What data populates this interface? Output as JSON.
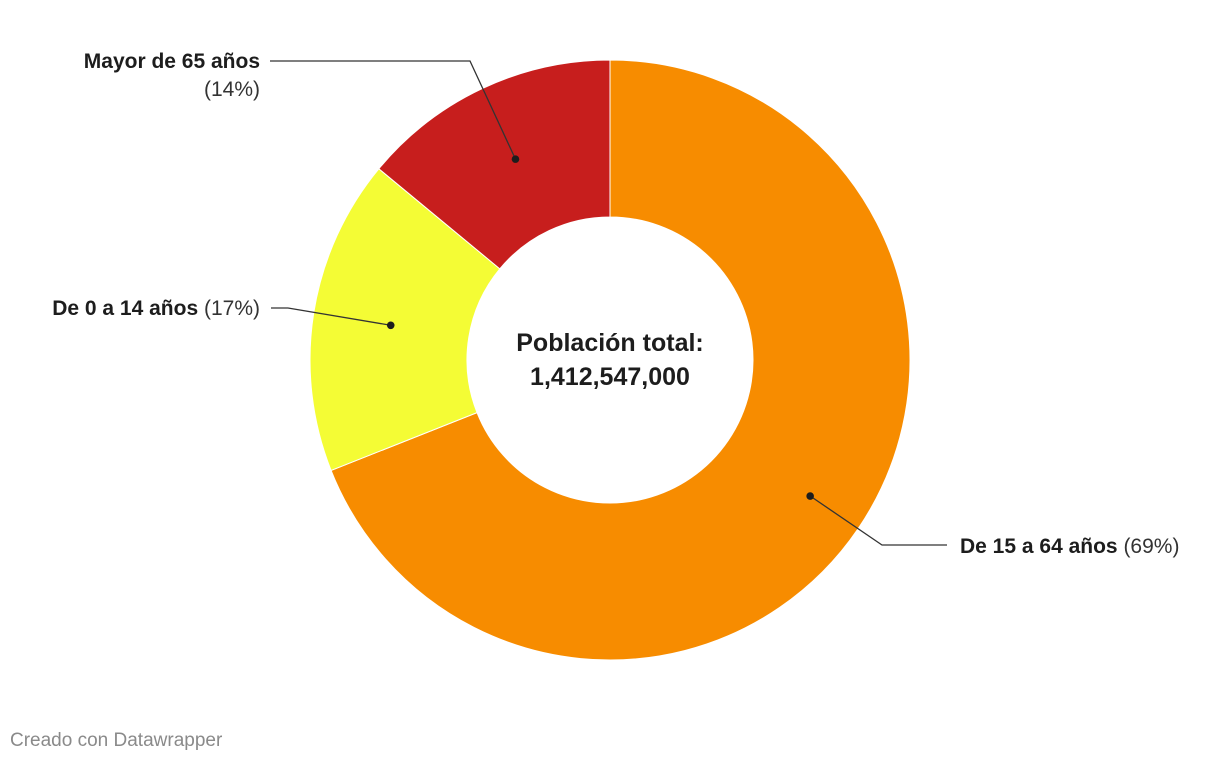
{
  "chart_data": {
    "type": "pie",
    "variant": "donut",
    "slices": [
      {
        "label": "De 15 a 64 años",
        "value": 69,
        "pct_label": "(69%)",
        "color": "#f78c00"
      },
      {
        "label": "De 0 a 14 años",
        "value": 17,
        "pct_label": "(17%)",
        "color": "#f4fc35"
      },
      {
        "label": "Mayor de 65 años",
        "value": 14,
        "pct_label": "(14%)",
        "color": "#c71e1d"
      }
    ],
    "center_label": {
      "line1": "Población total:",
      "line2": "1,412,547,000"
    }
  },
  "footer": {
    "credit": "Creado con Datawrapper"
  }
}
